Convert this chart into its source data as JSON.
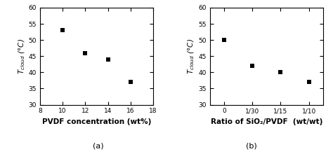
{
  "plot_a": {
    "x": [
      10,
      12,
      14,
      16
    ],
    "y": [
      53,
      46,
      44,
      37
    ],
    "xlabel": "PVDF concentration (wt%)",
    "xlim": [
      8,
      18
    ],
    "ylim": [
      30,
      60
    ],
    "xticks": [
      8,
      10,
      12,
      14,
      16,
      18
    ],
    "yticks": [
      30,
      35,
      40,
      45,
      50,
      55,
      60
    ],
    "label": "(a)"
  },
  "plot_b": {
    "x": [
      0,
      1,
      2,
      3
    ],
    "y": [
      50,
      42,
      40,
      37
    ],
    "xticklabels": [
      "0",
      "1/30",
      "1/15",
      "1/10"
    ],
    "xlabel": "Ratio of SiO₂/PVDF  (wt/wt)",
    "xlim": [
      -0.5,
      3.5
    ],
    "ylim": [
      30,
      60
    ],
    "yticks": [
      30,
      35,
      40,
      45,
      50,
      55,
      60
    ],
    "label": "(b)"
  },
  "marker": "s",
  "marker_size": 4,
  "marker_color": "black",
  "font_size_label": 7.5,
  "font_size_tick": 6.5,
  "font_size_caption": 8,
  "font_size_ylabel": 7.5
}
